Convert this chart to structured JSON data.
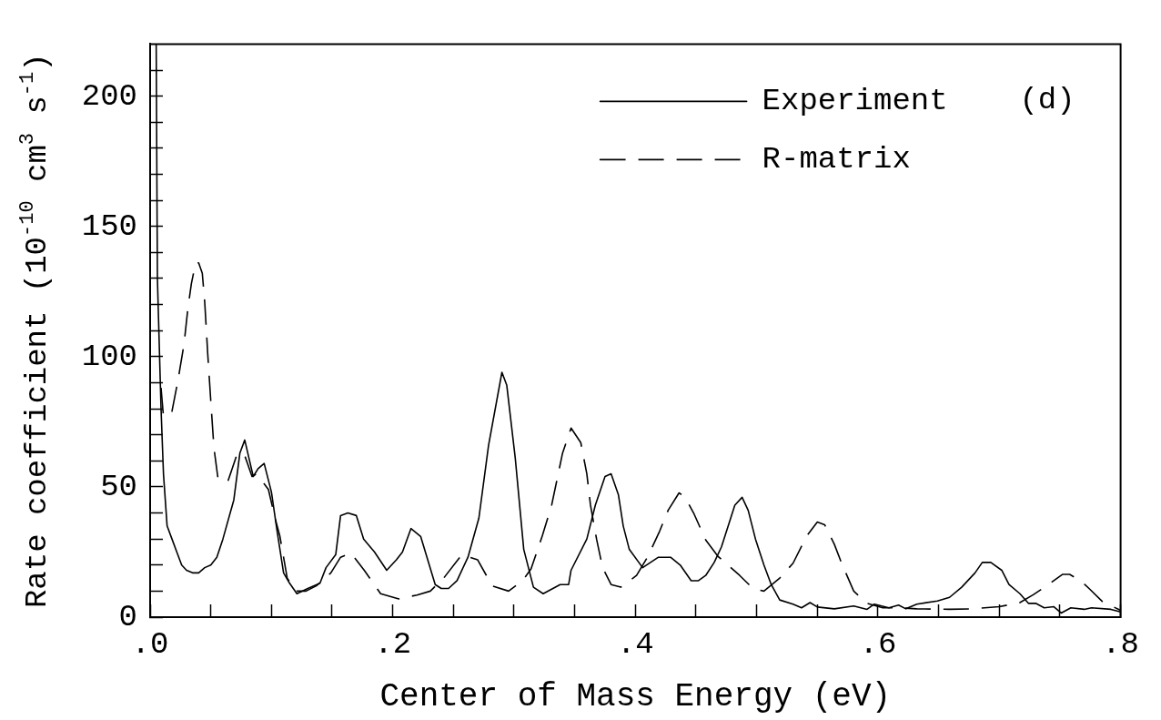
{
  "chart_data": {
    "type": "line",
    "xlabel": "Center of Mass Energy (eV)",
    "ylabel": "Rate coefficient (10$^{-10}$ cm$^{3}$ s$^{-1}$)",
    "annotations": [
      "(d)"
    ],
    "legend": "top right",
    "xlim": [
      0,
      0.8
    ],
    "ylim": [
      0,
      220
    ],
    "xticks": [
      {
        "value": 0,
        "label": ".0"
      },
      {
        "value": 0.05,
        "label": null
      },
      {
        "value": 0.1,
        "label": null
      },
      {
        "value": 0.15,
        "label": null
      },
      {
        "value": 0.2,
        "label": ".2"
      },
      {
        "value": 0.25,
        "label": null
      },
      {
        "value": 0.3,
        "label": null
      },
      {
        "value": 0.35,
        "label": null
      },
      {
        "value": 0.4,
        "label": ".4"
      },
      {
        "value": 0.45,
        "label": null
      },
      {
        "value": 0.5,
        "label": null
      },
      {
        "value": 0.55,
        "label": null
      },
      {
        "value": 0.6,
        "label": ".6"
      },
      {
        "value": 0.65,
        "label": null
      },
      {
        "value": 0.7,
        "label": null
      },
      {
        "value": 0.75,
        "label": null
      },
      {
        "value": 0.8,
        "label": ".8"
      }
    ],
    "yticks": [
      0,
      {
        "value": 10,
        "label": null
      },
      {
        "value": 20,
        "label": null
      },
      {
        "value": 30,
        "label": null
      },
      {
        "value": 40,
        "label": null
      },
      50,
      {
        "value": 60,
        "label": null
      },
      {
        "value": 70,
        "label": null
      },
      {
        "value": 80,
        "label": null
      },
      {
        "value": 90,
        "label": null
      },
      100,
      {
        "value": 110,
        "label": null
      },
      {
        "value": 120,
        "label": null
      },
      {
        "value": 130,
        "label": null
      },
      {
        "value": 140,
        "label": null
      },
      150,
      {
        "value": 160,
        "label": null
      },
      {
        "value": 170,
        "label": null
      },
      {
        "value": 180,
        "label": null
      },
      {
        "value": 190,
        "label": null
      },
      200,
      {
        "value": 210,
        "label": null
      }
    ],
    "series": [
      {
        "name": "Experiment",
        "color": "#000000",
        "line_style": "solid",
        "x": [
          0.005,
          0.006,
          0.009,
          0.011,
          0.014,
          0.018,
          0.022,
          0.026,
          0.03,
          0.035,
          0.04,
          0.045,
          0.05,
          0.055,
          0.06,
          0.069,
          0.074,
          0.078,
          0.081,
          0.085,
          0.089,
          0.094,
          0.1,
          0.105,
          0.11,
          0.115,
          0.121,
          0.13,
          0.14,
          0.145,
          0.153,
          0.157,
          0.163,
          0.17,
          0.176,
          0.185,
          0.195,
          0.203,
          0.208,
          0.215,
          0.223,
          0.235,
          0.24,
          0.246,
          0.253,
          0.262,
          0.271,
          0.279,
          0.29,
          0.294,
          0.301,
          0.308,
          0.316,
          0.324,
          0.338,
          0.345,
          0.347,
          0.36,
          0.367,
          0.375,
          0.38,
          0.386,
          0.39,
          0.395,
          0.406,
          0.419,
          0.429,
          0.437,
          0.446,
          0.452,
          0.458,
          0.465,
          0.471,
          0.482,
          0.488,
          0.493,
          0.499,
          0.506,
          0.512,
          0.519,
          0.53,
          0.537,
          0.544,
          0.55,
          0.564,
          0.58,
          0.591,
          0.597,
          0.609,
          0.617,
          0.623,
          0.632,
          0.649,
          0.659,
          0.669,
          0.68,
          0.686,
          0.693,
          0.702,
          0.708,
          0.717,
          0.724,
          0.73,
          0.737,
          0.745,
          0.751,
          0.759,
          0.77,
          0.776,
          0.792,
          0.8
        ],
        "values": [
          220,
          130,
          80,
          55,
          35,
          30,
          25,
          20,
          18,
          17,
          17,
          19,
          20,
          23,
          30,
          45,
          63,
          68,
          62,
          54,
          57,
          59,
          48,
          32,
          17,
          13,
          9,
          11,
          13,
          19,
          24,
          39,
          40,
          39,
          30,
          25,
          18,
          22,
          25,
          34,
          31,
          12.5,
          11,
          11,
          14,
          23,
          38,
          66,
          94,
          89,
          61,
          26,
          11.5,
          9,
          12.5,
          12.5,
          18,
          30,
          43,
          54,
          55,
          47,
          35,
          26,
          19,
          23,
          23,
          20,
          14,
          14,
          16,
          21,
          27,
          43,
          46,
          41,
          30,
          20,
          12.5,
          6.6,
          5,
          3.6,
          5.6,
          3.9,
          3.2,
          4.3,
          3,
          5,
          3.6,
          4.6,
          3.2,
          5,
          6.2,
          7.6,
          11.5,
          17,
          21,
          21,
          18,
          12.5,
          9,
          5.3,
          5.3,
          3.6,
          4,
          1.6,
          3.6,
          3,
          3.6,
          3,
          2
        ]
      },
      {
        "name": "R-matrix",
        "color": "#000000",
        "line_style": "dashed",
        "x": [
          0.009,
          0.011,
          0.018,
          0.023,
          0.028,
          0.031,
          0.034,
          0.0375,
          0.04,
          0.043,
          0.045,
          0.0475,
          0.05,
          0.0526,
          0.056,
          0.064,
          0.072,
          0.078,
          0.084,
          0.088,
          0.0975,
          0.103,
          0.107,
          0.113,
          0.12,
          0.1285,
          0.137,
          0.149,
          0.157,
          0.1655,
          0.1765,
          0.19,
          0.205,
          0.22,
          0.231,
          0.242,
          0.257,
          0.27,
          0.282,
          0.2955,
          0.307,
          0.314,
          0.3235,
          0.331,
          0.34,
          0.347,
          0.355,
          0.36,
          0.363,
          0.368,
          0.373,
          0.38,
          0.388,
          0.401,
          0.41,
          0.42,
          0.427,
          0.436,
          0.441,
          0.448,
          0.458,
          0.468,
          0.486,
          0.497,
          0.506,
          0.519,
          0.53,
          0.541,
          0.55,
          0.556,
          0.564,
          0.57,
          0.58,
          0.591,
          0.604,
          0.617,
          0.632,
          0.659,
          0.678,
          0.7,
          0.717,
          0.728,
          0.739,
          0.752,
          0.758,
          0.767,
          0.774,
          0.785,
          0.8
        ],
        "values": [
          88,
          77,
          79,
          91,
          105,
          118,
          128,
          136,
          136,
          132,
          121,
          101,
          83,
          65,
          53,
          52,
          63,
          62,
          54,
          55,
          49,
          38,
          31,
          15,
          10,
          10,
          12,
          17,
          23,
          24.6,
          18,
          9,
          7,
          8.5,
          10,
          15,
          24,
          22,
          12,
          10,
          14,
          18.5,
          31.5,
          43,
          63,
          72.6,
          67,
          55,
          43,
          30,
          19,
          12.5,
          11.5,
          16,
          23,
          33,
          41,
          47.7,
          46,
          40,
          29.6,
          23.4,
          16,
          11,
          10,
          15,
          20.7,
          31,
          36.5,
          35.5,
          28,
          20.7,
          10,
          5.3,
          3.6,
          3.6,
          3.2,
          3,
          3.2,
          4,
          5.6,
          8.6,
          12,
          16.4,
          16.4,
          14,
          11,
          6,
          2.6
        ]
      }
    ]
  }
}
